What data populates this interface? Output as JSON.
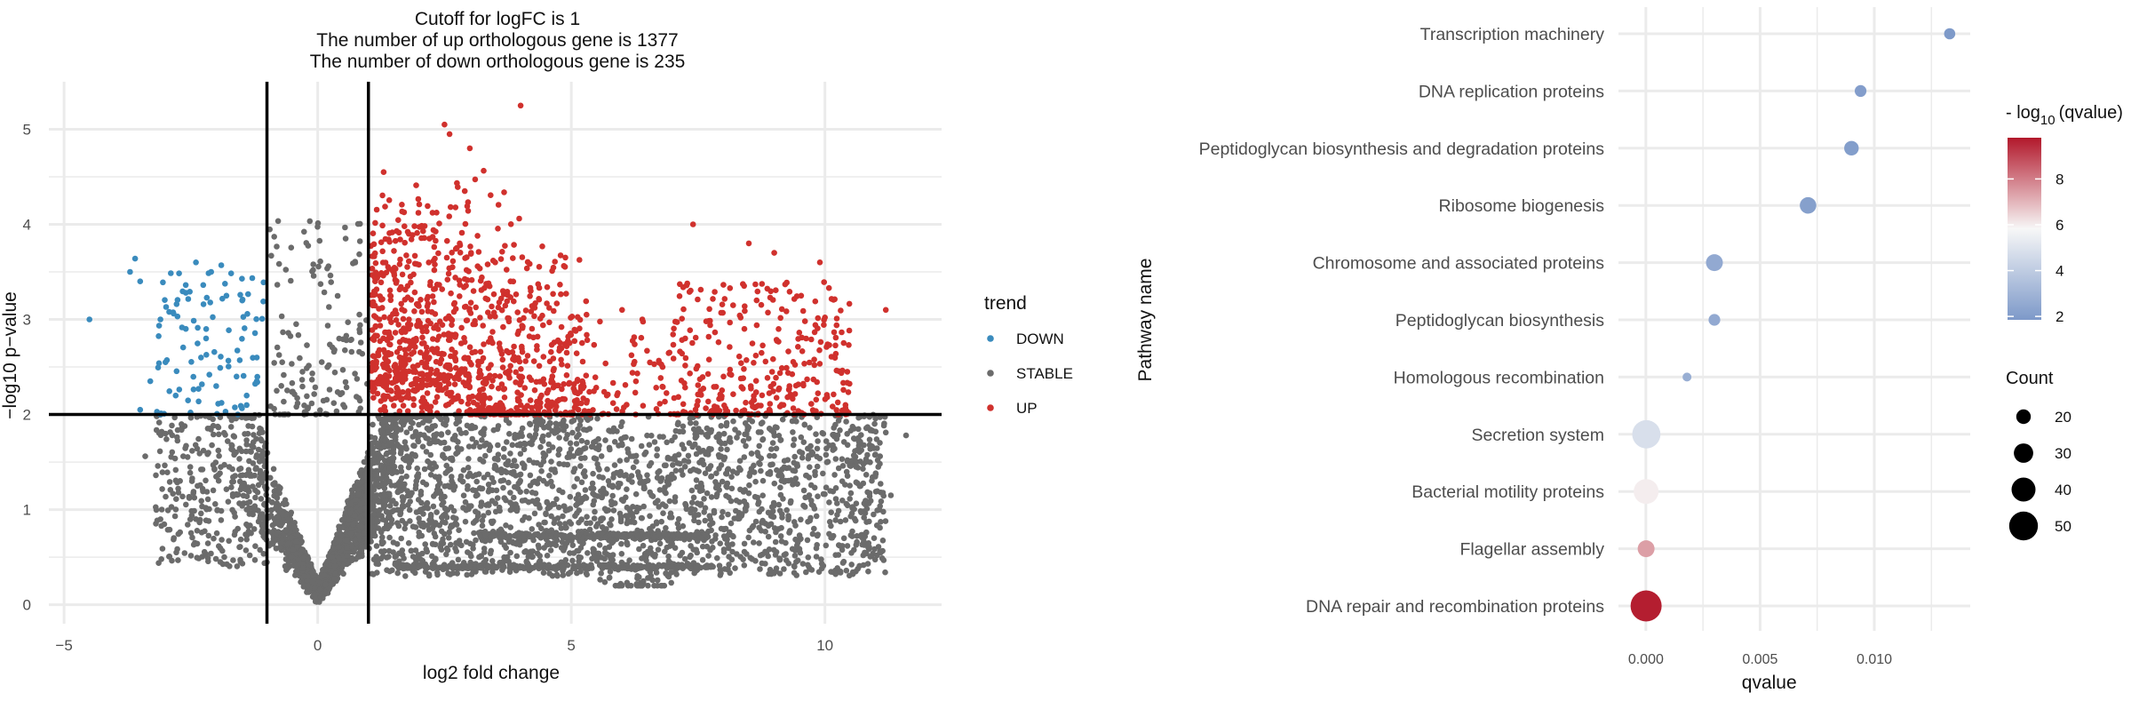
{
  "colors": {
    "down": "#3a8bbd",
    "stable": "#6b6b6b",
    "up": "#d0312d",
    "grid": "#ebebeb",
    "text": "#4d4d4d",
    "cutoff_line": "#000000",
    "dot_low": "#7d99c9",
    "dot_mid": "#f7f7f7",
    "dot_high": "#b2182b"
  },
  "chart_data": [
    {
      "type": "scatter",
      "title_lines": [
        "Cutoff for logFC is 1",
        "The number of up orthologous gene is 1377",
        "The number of down orthologous gene is 235"
      ],
      "xlabel": "log2 fold change",
      "ylabel": "−log10 p−value",
      "xlim": [
        -5.3,
        12.3
      ],
      "ylim": [
        -0.2,
        5.5
      ],
      "xticks": [
        -5,
        0,
        5,
        10
      ],
      "yticks": [
        0,
        1,
        2,
        3,
        4,
        5
      ],
      "cutoff_lines": {
        "vertical": [
          -1,
          1
        ],
        "horizontal": [
          2
        ]
      },
      "legend_title": "trend",
      "legend_items": [
        {
          "key": "down",
          "label": "DOWN"
        },
        {
          "key": "stable",
          "label": "STABLE"
        },
        {
          "key": "up",
          "label": "UP"
        }
      ],
      "counts": {
        "up": 1377,
        "down": 235
      },
      "series": [
        {
          "name": "DOWN",
          "note": "points with log2FC < -1 and -log10 p > 2; 235 points",
          "points": [
            [
              -4.5,
              3.0
            ],
            [
              -3.6,
              3.64
            ],
            [
              -3.7,
              3.5
            ],
            [
              -3.5,
              3.4
            ],
            [
              -3.1,
              3.0
            ],
            [
              -2.4,
              3.6
            ],
            [
              -1.9,
              3.57
            ],
            [
              -2.1,
              3.5
            ],
            [
              -1.8,
              3.25
            ],
            [
              -2.6,
              2.9
            ],
            [
              -3.0,
              2.55
            ],
            [
              -3.3,
              2.35
            ],
            [
              -2.8,
              2.2
            ],
            [
              -3.5,
              2.05
            ],
            [
              -2.2,
              2.8
            ],
            [
              -1.6,
              2.4
            ],
            [
              -1.4,
              2.1
            ],
            [
              -2.0,
              2.3
            ],
            [
              -2.3,
              2.6
            ],
            [
              -1.2,
              2.35
            ]
          ]
        },
        {
          "name": "STABLE",
          "note": "points with -log10 p < 2 or |log2FC| < 1"
        },
        {
          "name": "UP",
          "note": "points with log2FC > 1 and -log10 p > 2; 1377 points",
          "points": [
            [
              4.0,
              5.25
            ],
            [
              2.5,
              5.05
            ],
            [
              2.6,
              4.95
            ],
            [
              3.0,
              4.8
            ],
            [
              1.3,
              4.55
            ],
            [
              2.9,
              4.35
            ],
            [
              7.4,
              4.0
            ],
            [
              8.5,
              3.8
            ],
            [
              9.0,
              3.7
            ],
            [
              9.9,
              3.6
            ],
            [
              11.2,
              3.1
            ],
            [
              5.3,
              3.05
            ],
            [
              6.0,
              3.1
            ],
            [
              6.4,
              3.0
            ],
            [
              3.5,
              3.6
            ],
            [
              4.2,
              3.3
            ],
            [
              1.8,
              3.0
            ],
            [
              2.2,
              2.6
            ],
            [
              3.2,
              2.4
            ],
            [
              5.7,
              2.2
            ],
            [
              6.8,
              2.5
            ],
            [
              8.0,
              2.4
            ],
            [
              9.3,
              2.3
            ],
            [
              10.4,
              2.05
            ]
          ]
        }
      ]
    },
    {
      "type": "dot",
      "xlabel": "qvalue",
      "ylabel": "Pathway name",
      "xlim": [
        -0.0012,
        0.0142
      ],
      "xticks": [
        0.0,
        0.005,
        0.01
      ],
      "xtick_labels": [
        "0.000",
        "0.005",
        "0.010"
      ],
      "color_legend_title_prefix": "- log",
      "color_legend_title_sub": "10",
      "color_legend_title_suffix": "(qvalue)",
      "color_range": [
        1.85,
        9.8
      ],
      "color_ticks": [
        2,
        4,
        6,
        8
      ],
      "size_legend_title": "Count",
      "size_legend_values": [
        20,
        30,
        40,
        50
      ],
      "size_range": [
        8,
        60
      ],
      "pathways": [
        {
          "name": "Transcription machinery",
          "qvalue": 0.0133,
          "neg_log10_q": 1.88,
          "count": 13
        },
        {
          "name": "DNA replication proteins",
          "qvalue": 0.0094,
          "neg_log10_q": 2.03,
          "count": 14
        },
        {
          "name": "Peptidoglycan biosynthesis and degradation proteins",
          "qvalue": 0.009,
          "neg_log10_q": 2.05,
          "count": 20
        },
        {
          "name": "Ribosome biogenesis",
          "qvalue": 0.0071,
          "neg_log10_q": 2.15,
          "count": 24
        },
        {
          "name": "Chromosome and associated proteins",
          "qvalue": 0.003,
          "neg_log10_q": 2.52,
          "count": 25
        },
        {
          "name": "Peptidoglycan biosynthesis",
          "qvalue": 0.003,
          "neg_log10_q": 2.52,
          "count": 14
        },
        {
          "name": "Homologous recombination",
          "qvalue": 0.0018,
          "neg_log10_q": 2.74,
          "count": 8
        },
        {
          "name": "Secretion system",
          "qvalue": 2e-05,
          "neg_log10_q": 4.8,
          "count": 49
        },
        {
          "name": "Bacterial motility proteins",
          "qvalue": 1e-05,
          "neg_log10_q": 6.0,
          "count": 42
        },
        {
          "name": "Flagellar assembly",
          "qvalue": 1e-05,
          "neg_log10_q": 7.4,
          "count": 25
        },
        {
          "name": "DNA repair and recombination proteins",
          "qvalue": 1e-05,
          "neg_log10_q": 9.7,
          "count": 55
        }
      ]
    }
  ]
}
